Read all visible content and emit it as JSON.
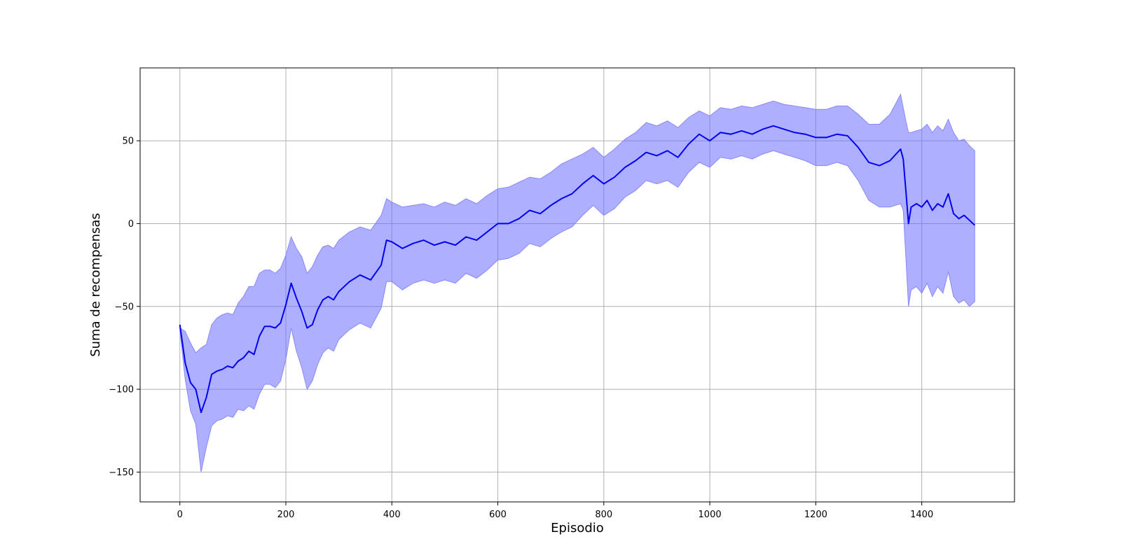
{
  "chart_data": {
    "type": "line",
    "title": "",
    "xlabel": "Episodio",
    "ylabel": "Suma de recompensas",
    "xlim": [
      -75,
      1575
    ],
    "ylim": [
      -168,
      94
    ],
    "xticks": [
      0,
      200,
      400,
      600,
      800,
      1000,
      1200,
      1400
    ],
    "yticks": [
      -150,
      -100,
      -50,
      0,
      50
    ],
    "grid": true,
    "legend": "none",
    "colors": {
      "line": "#0000ee",
      "band": "#6666ff",
      "band_edge": "#8888ff",
      "grid": "#b0b0b0"
    },
    "series": [
      {
        "x": [
          0,
          10,
          20,
          30,
          40,
          50,
          60,
          70,
          80,
          90,
          100,
          110,
          120,
          130,
          140,
          150,
          160,
          170,
          180,
          190,
          200,
          210,
          220,
          230,
          240,
          250,
          260,
          270,
          280,
          290,
          300,
          320,
          340,
          360,
          380,
          390,
          400,
          420,
          440,
          460,
          480,
          500,
          520,
          540,
          560,
          580,
          600,
          620,
          640,
          660,
          680,
          700,
          720,
          740,
          760,
          780,
          800,
          820,
          840,
          860,
          880,
          900,
          920,
          940,
          960,
          980,
          1000,
          1020,
          1040,
          1060,
          1080,
          1100,
          1120,
          1140,
          1160,
          1180,
          1200,
          1220,
          1240,
          1260,
          1280,
          1300,
          1320,
          1340,
          1360,
          1365,
          1370,
          1375,
          1380,
          1390,
          1400,
          1410,
          1420,
          1430,
          1440,
          1450,
          1460,
          1470,
          1480,
          1490,
          1500
        ],
        "mean": [
          -61,
          -84,
          -96,
          -100,
          -114,
          -105,
          -91,
          -89,
          -88,
          -86,
          -87,
          -83,
          -81,
          -77,
          -79,
          -68,
          -62,
          -62,
          -63,
          -60,
          -49,
          -36,
          -45,
          -53,
          -63,
          -61,
          -52,
          -46,
          -44,
          -46,
          -41,
          -35,
          -31,
          -34,
          -25,
          -10,
          -11,
          -15,
          -12,
          -10,
          -13,
          -11,
          -13,
          -8,
          -10,
          -5,
          0,
          0,
          3,
          8,
          6,
          11,
          15,
          18,
          24,
          29,
          24,
          28,
          34,
          38,
          43,
          41,
          44,
          40,
          48,
          54,
          50,
          55,
          54,
          56,
          54,
          57,
          59,
          57,
          55,
          54,
          52,
          52,
          54,
          53,
          46,
          37,
          35,
          38,
          45,
          39,
          20,
          0,
          10,
          12,
          10,
          14,
          8,
          12,
          10,
          18,
          6,
          3,
          5,
          2,
          -1
        ],
        "upper": [
          -63,
          -65,
          -72,
          -78,
          -75,
          -73,
          -61,
          -57,
          -55,
          -54,
          -55,
          -48,
          -44,
          -38,
          -38,
          -30,
          -28,
          -28,
          -30,
          -27,
          -19,
          -8,
          -15,
          -20,
          -30,
          -26,
          -19,
          -14,
          -13,
          -15,
          -10,
          -5,
          -2,
          -4,
          5,
          15,
          13,
          10,
          11,
          12,
          10,
          13,
          11,
          15,
          12,
          17,
          21,
          22,
          25,
          28,
          27,
          31,
          36,
          39,
          42,
          46,
          40,
          45,
          51,
          55,
          61,
          59,
          62,
          58,
          64,
          68,
          65,
          70,
          69,
          71,
          70,
          72,
          74,
          72,
          71,
          70,
          69,
          69,
          71,
          71,
          66,
          60,
          60,
          66,
          78,
          70,
          62,
          55,
          55,
          56,
          57,
          60,
          55,
          59,
          56,
          63,
          55,
          50,
          51,
          47,
          44
        ],
        "lower": [
          -64,
          -94,
          -113,
          -121,
          -150,
          -135,
          -122,
          -119,
          -118,
          -116,
          -117,
          -112,
          -113,
          -110,
          -112,
          -103,
          -97,
          -97,
          -99,
          -95,
          -82,
          -63,
          -77,
          -87,
          -100,
          -95,
          -85,
          -78,
          -75,
          -77,
          -70,
          -64,
          -60,
          -63,
          -51,
          -35,
          -35,
          -40,
          -36,
          -34,
          -36,
          -34,
          -36,
          -30,
          -33,
          -28,
          -22,
          -21,
          -18,
          -12,
          -14,
          -9,
          -5,
          -2,
          5,
          11,
          5,
          9,
          16,
          20,
          26,
          24,
          26,
          22,
          31,
          37,
          34,
          40,
          39,
          41,
          39,
          42,
          44,
          42,
          40,
          38,
          35,
          35,
          37,
          35,
          26,
          14,
          10,
          10,
          12,
          8,
          -20,
          -50,
          -40,
          -38,
          -42,
          -36,
          -44,
          -38,
          -42,
          -29,
          -44,
          -48,
          -46,
          -50,
          -47
        ]
      }
    ]
  }
}
